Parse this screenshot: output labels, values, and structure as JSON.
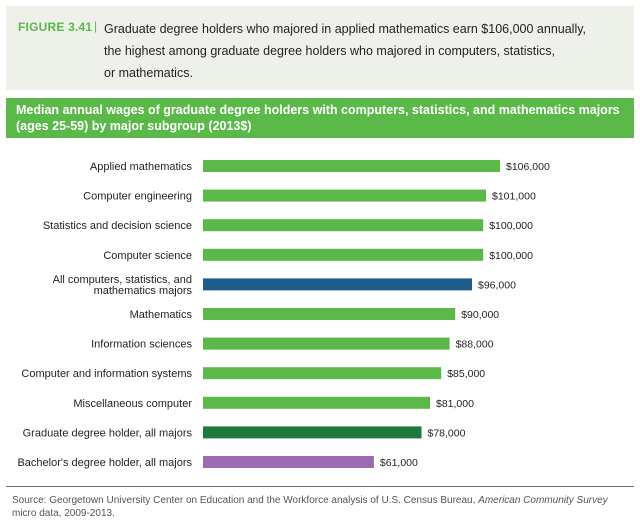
{
  "figure": {
    "label": "FIGURE 3.41",
    "separator": "|",
    "lines": [
      "Graduate degree holders who majored in applied mathematics earn $106,000 annually,",
      "the highest among graduate degree holders who majored in computers, statistics,",
      "or mathematics."
    ]
  },
  "banner": {
    "lines": [
      "Median annual wages of graduate degree holders with computers, statistics, and mathematics majors",
      "(ages 25-59) by major subgroup (2013$)"
    ]
  },
  "chart_data": {
    "type": "bar",
    "orientation": "horizontal",
    "title": "Median annual wages of graduate degree holders with computers, statistics, and mathematics majors (ages 25-59) by major subgroup (2013$)",
    "xlim": [
      0,
      106000
    ],
    "grid": false,
    "categories": [
      "Applied mathematics",
      "Computer engineering",
      "Statistics and decision science",
      "Computer science",
      "All computers, statistics, and mathematics majors",
      "Mathematics",
      "Information sciences",
      "Computer and information systems",
      "Miscellaneous computer",
      "Graduate degree holder, all majors",
      "Bachelor's degree holder, all majors"
    ],
    "category_label_lines": [
      [
        "Applied mathematics"
      ],
      [
        "Computer engineering"
      ],
      [
        "Statistics and decision science"
      ],
      [
        "Computer science"
      ],
      [
        "All computers, statistics, and",
        "mathematics majors"
      ],
      [
        "Mathematics"
      ],
      [
        "Information sciences"
      ],
      [
        "Computer and information systems"
      ],
      [
        "Miscellaneous computer"
      ],
      [
        "Graduate degree holder, all majors"
      ],
      [
        "Bachelor's degree holder, all majors"
      ]
    ],
    "values": [
      106000,
      101000,
      100000,
      100000,
      96000,
      90000,
      88000,
      85000,
      81000,
      78000,
      61000
    ],
    "value_labels": [
      "$106,000",
      "$101,000",
      "$100,000",
      "$100,000",
      "$96,000",
      "$90,000",
      "$88,000",
      "$85,000",
      "$81,000",
      "$78,000",
      "$61,000"
    ],
    "colors": [
      "#5bb949",
      "#5bb949",
      "#5bb949",
      "#5bb949",
      "#1f5e8c",
      "#5bb949",
      "#5bb949",
      "#5bb949",
      "#5bb949",
      "#1e7a3c",
      "#9a6bb0"
    ]
  },
  "source": {
    "prefix": "Source: Georgetown University Center on Education and the Workforce analysis of U.S. Census Bureau, ",
    "italic": "American Community Survey",
    "suffix": "micro data, 2009-2013."
  }
}
